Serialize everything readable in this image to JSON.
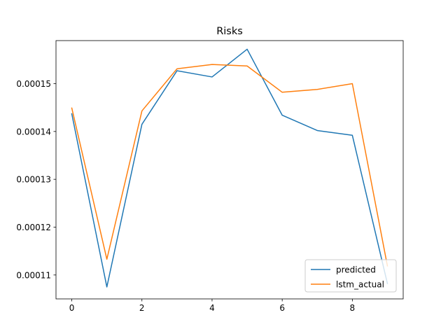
{
  "chart_data": {
    "type": "line",
    "title": "Risks",
    "xlabel": "",
    "ylabel": "",
    "x": [
      0,
      1,
      2,
      3,
      4,
      5,
      6,
      7,
      8,
      9
    ],
    "xlim": [
      -0.45,
      9.45
    ],
    "ylim": [
      0.000105,
      0.000159
    ],
    "xticks": [
      0,
      2,
      4,
      6,
      8
    ],
    "yticks": [
      0.00011,
      0.00012,
      0.00013,
      0.00014,
      0.00015
    ],
    "ytick_labels": [
      "0.00011",
      "0.00012",
      "0.00013",
      "0.00014",
      "0.00015"
    ],
    "grid": false,
    "legend_position": "lower-right",
    "series": [
      {
        "name": "predicted",
        "color": "#1f77b4",
        "values": [
          0.0001437,
          0.0001075,
          0.0001415,
          0.0001527,
          0.0001514,
          0.0001572,
          0.0001434,
          0.0001402,
          0.0001392,
          0.0001082
        ]
      },
      {
        "name": "lstm_actual",
        "color": "#ff7f0e",
        "values": [
          0.0001449,
          0.0001133,
          0.0001443,
          0.0001531,
          0.000154,
          0.0001537,
          0.0001482,
          0.0001488,
          0.00015,
          0.0001119
        ]
      }
    ]
  }
}
